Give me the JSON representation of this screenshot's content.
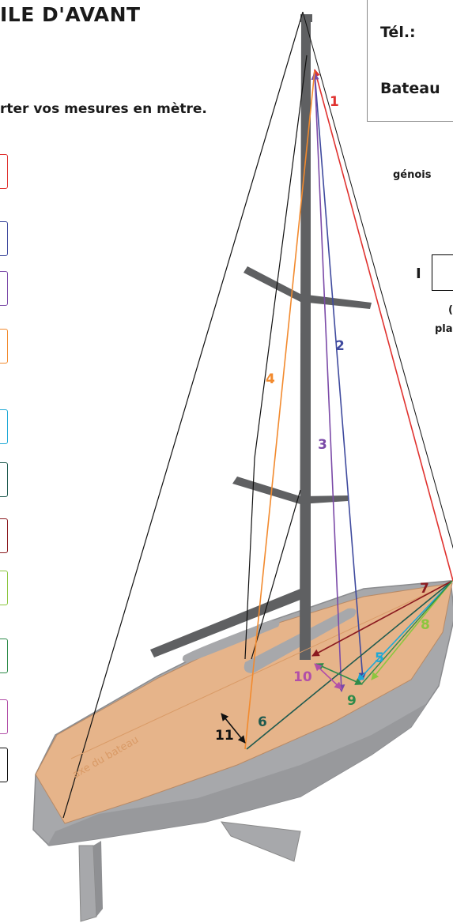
{
  "title": "ILE D'AVANT",
  "instruction": "rter  vos mesures en mètre.",
  "panel": {
    "tel": "Tél.:",
    "bateau": "Bateau"
  },
  "genois": "génois",
  "box_i_label": "I",
  "side_note_1": "(",
  "side_note_2": "pla",
  "axis_label": "axe du bateau",
  "colors": {
    "c1": "#e0322f",
    "c2": "#3f4a9e",
    "c3": "#7b4aa8",
    "c4": "#f28a2e",
    "c5": "#1fa9d6",
    "c6": "#1f5a4f",
    "c7": "#8b1a1f",
    "c8": "#8cc63f",
    "c9": "#2e8b4a",
    "c10": "#b24fa8",
    "c11": "#111111",
    "deck": "#e6b48a",
    "hull": "#a7a8ab",
    "mast": "#5f6062"
  },
  "measures": [
    {
      "n": "1",
      "color": "#e0322f"
    },
    {
      "n": "2",
      "color": "#3f4a9e"
    },
    {
      "n": "3",
      "color": "#7b4aa8"
    },
    {
      "n": "4",
      "color": "#f28a2e"
    },
    {
      "n": "5",
      "color": "#1fa9d6"
    },
    {
      "n": "6",
      "color": "#1f5a4f"
    },
    {
      "n": "7",
      "color": "#8b1a1f"
    },
    {
      "n": "8",
      "color": "#8cc63f"
    },
    {
      "n": "9",
      "color": "#2e8b4a"
    },
    {
      "n": "10",
      "color": "#b24fa8"
    },
    {
      "n": "11",
      "color": "#111111"
    }
  ]
}
